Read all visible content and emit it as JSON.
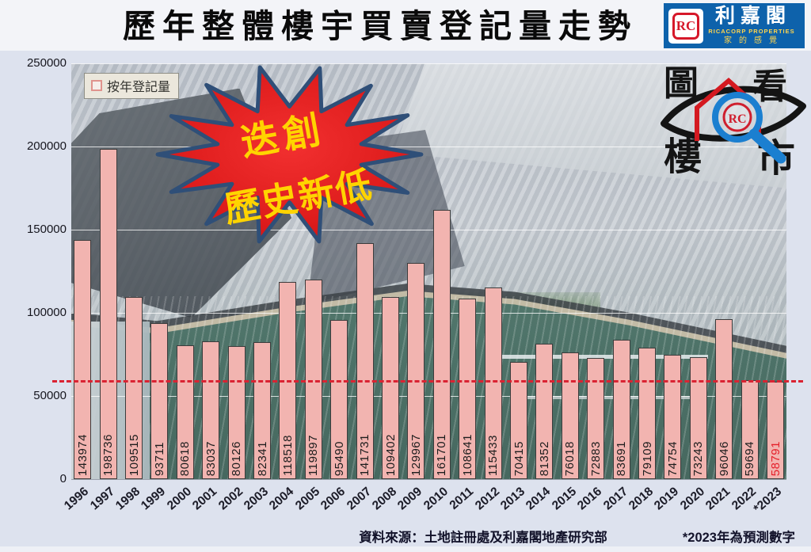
{
  "title": "歷年整體樓宇買賣登記量走勢",
  "logo": {
    "monogram": "RC",
    "name_zh": "利嘉閣",
    "name_en": "RICACORP PROPERTIES",
    "tagline": "家的感覺"
  },
  "corner_logo": {
    "chars": [
      "圖",
      "看",
      "樓",
      "市"
    ]
  },
  "legend": {
    "label": "按年登記量"
  },
  "burst": {
    "line1": "迭創",
    "line2": "歷史新低"
  },
  "footer": {
    "source": "資料來源：土地註冊處及利嘉閣地產研究部",
    "note": "*2023年為預測數字"
  },
  "colors": {
    "page_bg": "#dde2ee",
    "top_band": "#f3f4f8",
    "bar_fill": "#f2b4b0",
    "bar_border": "#3c3c3c",
    "value_label": "#1d1d1d",
    "highlight_value_label": "#e5202a",
    "reference_line": "#da2332",
    "grid_line": "#ffffff",
    "burst_fill": "#e11d1d",
    "burst_outline": "#2f4f78",
    "burst_text": "#ffd400",
    "banner_bg": "#0e62ab",
    "banner_accent": "#ffd44d",
    "water": "#55796f"
  },
  "chart_data": {
    "type": "bar",
    "title": "歷年整體樓宇買賣登記量走勢",
    "legend": "按年登記量",
    "legend_position": "top-left",
    "categories": [
      "1996",
      "1997",
      "1998",
      "1999",
      "2000",
      "2001",
      "2002",
      "2003",
      "2004",
      "2005",
      "2006",
      "2007",
      "2008",
      "2009",
      "2010",
      "2011",
      "2012",
      "2013",
      "2014",
      "2015",
      "2016",
      "2017",
      "2018",
      "2019",
      "2020",
      "2021",
      "2022",
      "*2023"
    ],
    "values": [
      143974,
      198736,
      109515,
      93711,
      80618,
      83037,
      80126,
      82341,
      118518,
      119897,
      95490,
      141731,
      109402,
      129967,
      161701,
      108641,
      115433,
      70415,
      81352,
      76018,
      72883,
      83691,
      79109,
      74754,
      73243,
      96046,
      59694,
      58791
    ],
    "ylim": [
      0,
      250000
    ],
    "yticks": [
      0,
      50000,
      100000,
      150000,
      200000,
      250000
    ],
    "grid": true,
    "value_labels": "inside-vertical",
    "highlight_index": 27,
    "reference_line_value": 58791,
    "note": "*2023年為預測數字"
  }
}
